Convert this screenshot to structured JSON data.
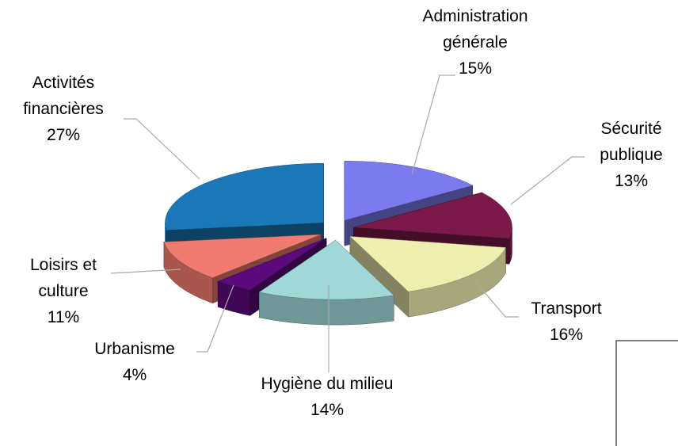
{
  "chart_data": {
    "type": "pie3d",
    "categories": [
      "Administration générale",
      "Sécurité publique",
      "Transport",
      "Hygiène du milieu",
      "Urbanisme",
      "Loisirs et culture",
      "Activités financières"
    ],
    "values": [
      15,
      13,
      16,
      14,
      4,
      11,
      27
    ],
    "value_labels": [
      "15%",
      "13%",
      "16%",
      "14%",
      "4%",
      "11%",
      "27%"
    ],
    "colors": [
      "#7b7bef",
      "#7b1a4a",
      "#eeeeb0",
      "#a0d8d8",
      "#5a0a7a",
      "#f07b70",
      "#1a78b8"
    ]
  }
}
